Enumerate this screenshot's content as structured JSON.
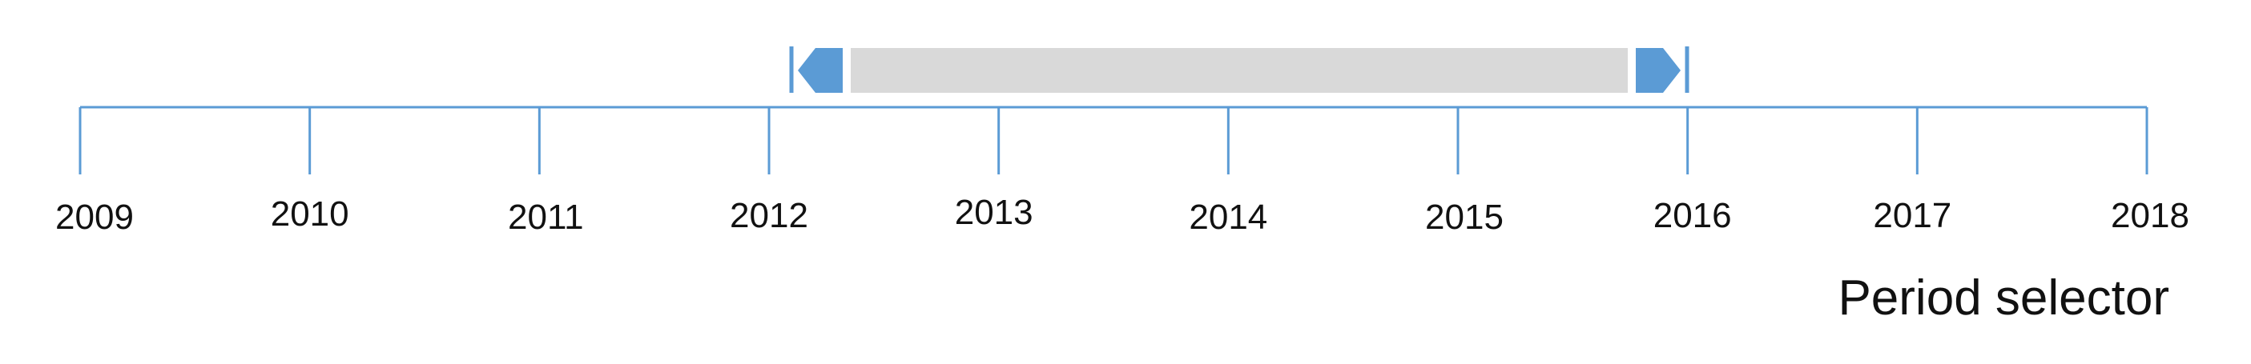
{
  "timeline": {
    "years": [
      "2009",
      "2010",
      "2011",
      "2012",
      "2013",
      "2014",
      "2015",
      "2016",
      "2017",
      "2018"
    ]
  },
  "selection": {
    "start": 2012.1,
    "end": 2016.0
  },
  "caption": "Period selector",
  "colors": {
    "accent": "#5b9bd5",
    "track": "#d9d9d9",
    "text": "#111111"
  },
  "icons": {
    "start_handle": "left-arrow-handle-icon",
    "end_handle": "right-arrow-handle-icon"
  }
}
